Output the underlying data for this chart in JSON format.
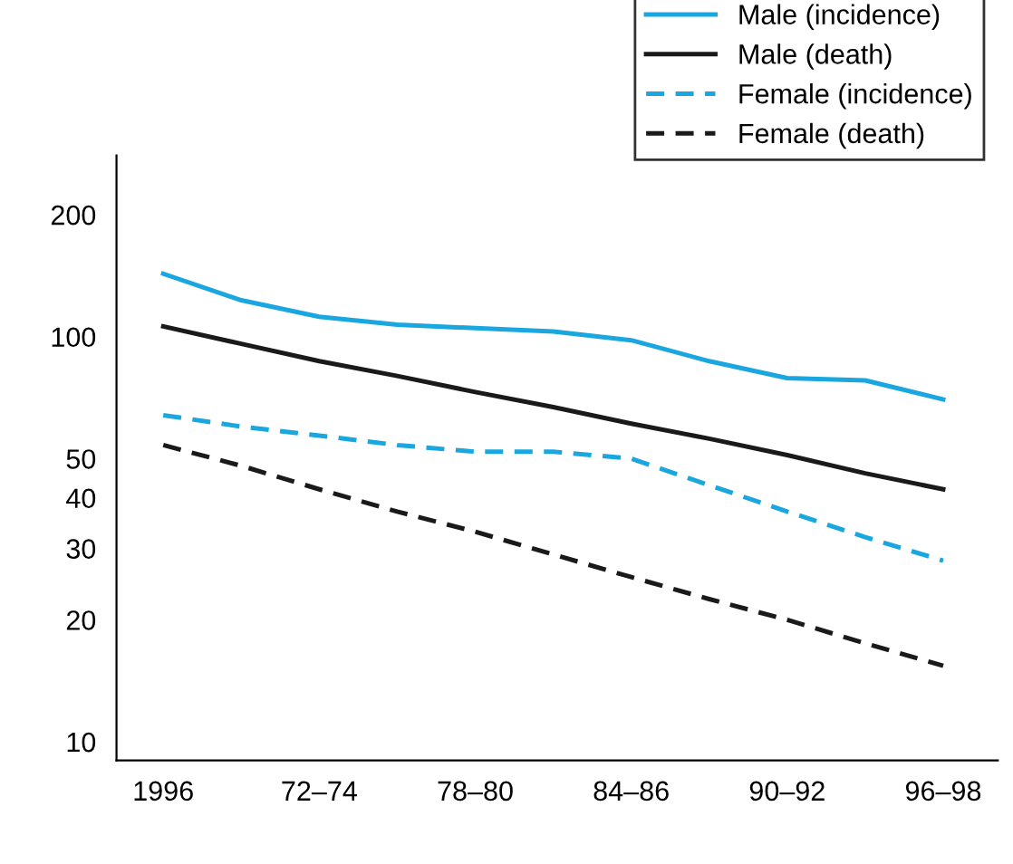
{
  "chart_data": {
    "type": "line",
    "log": "y",
    "ylim": [
      9,
      280
    ],
    "yticks": [
      10,
      20,
      30,
      40,
      50,
      100,
      200
    ],
    "categories": [
      "1996",
      null,
      "72–74",
      null,
      "78–80",
      null,
      "84–86",
      null,
      "90–92",
      null,
      "96–98"
    ],
    "series": [
      {
        "name": "Male (incidence)",
        "color": "#1aa7e0",
        "line_style": "solid",
        "values": [
          143,
          123,
          112,
          107,
          105,
          103,
          98,
          87,
          79,
          78,
          70
        ]
      },
      {
        "name": "Male (death)",
        "color": "#1a1a1a",
        "line_style": "solid",
        "values": [
          106,
          96,
          87,
          80,
          73,
          67,
          61,
          56,
          51,
          46,
          42
        ]
      },
      {
        "name": "Female (incidence)",
        "color": "#1aa7e0",
        "line_style": "dashed",
        "values": [
          64,
          60,
          57,
          54,
          52,
          52,
          50,
          43,
          37,
          32,
          28
        ]
      },
      {
        "name": "Female (death)",
        "color": "#1a1a1a",
        "line_style": "dashed",
        "values": [
          54,
          48,
          42,
          37,
          33,
          29,
          25.5,
          22.5,
          20,
          17.5,
          15.4
        ]
      }
    ],
    "legend": "top right",
    "grid": false
  }
}
